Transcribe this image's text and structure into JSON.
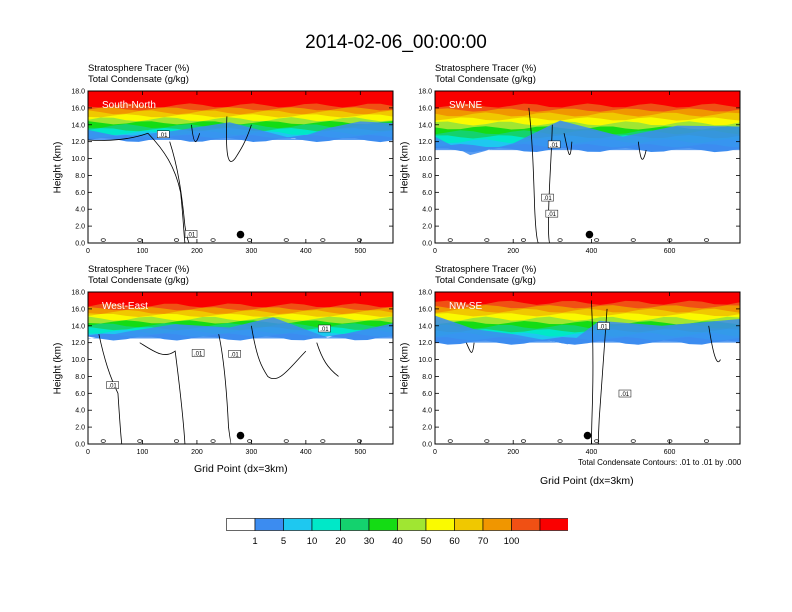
{
  "title": "2014-02-06_00:00:00",
  "panel_header": {
    "line1": "Stratosphere Tracer   (%)",
    "line2": "Total Condensate   (g/kg)"
  },
  "ylabel": "Height (km)",
  "xlabel": "Grid Point (dx=3km)",
  "contour_note": "Total Condensate Contours: .01 to .01 by .000",
  "colors": {
    "white": "#ffffff",
    "blue": "#3c8cf0",
    "sky": "#1ec8f0",
    "cyan": "#00e8c8",
    "teal": "#14d26e",
    "green": "#14dc14",
    "lime": "#a0e632",
    "yellow": "#fafa00",
    "gold": "#f0c800",
    "orange": "#f09600",
    "redorange": "#f05014",
    "red": "#fa0000"
  },
  "colorbar": {
    "levels": [
      "1",
      "5",
      "10",
      "20",
      "30",
      "40",
      "50",
      "60",
      "70",
      "100"
    ],
    "colors": [
      "#ffffff",
      "#3c8cf0",
      "#1ec8f0",
      "#00e8c8",
      "#14d26e",
      "#14dc14",
      "#a0e632",
      "#fafa00",
      "#f0c800",
      "#f09600",
      "#f05014",
      "#fa0000"
    ]
  },
  "chart_data": [
    {
      "type": "heatmap",
      "panel_label": "South-North",
      "xlim": [
        0,
        560
      ],
      "ylim": [
        0,
        18
      ],
      "xticks": [
        "0",
        "100",
        "200",
        "300",
        "400",
        "500"
      ],
      "yticks": [
        "0.0",
        "2.0",
        "4.0",
        "6.0",
        "8.0",
        "10.0",
        "12.0",
        "14.0",
        "16.0",
        "18.0"
      ],
      "contour_labels": [
        ".01",
        ".01"
      ],
      "marker": {
        "x": 280,
        "y": 1.0
      }
    },
    {
      "type": "heatmap",
      "panel_label": "SW-NE",
      "xlim": [
        0,
        780
      ],
      "ylim": [
        0,
        18
      ],
      "xticks": [
        "0",
        "200",
        "400",
        "600"
      ],
      "yticks": [
        "0.0",
        "2.0",
        "4.0",
        "6.0",
        "8.0",
        "10.0",
        "12.0",
        "14.0",
        "16.0",
        "18.0"
      ],
      "contour_labels": [
        ".01",
        ".01",
        ".01"
      ],
      "marker": {
        "x": 395,
        "y": 1.0
      }
    },
    {
      "type": "heatmap",
      "panel_label": "West-East",
      "xlim": [
        0,
        560
      ],
      "ylim": [
        0,
        18
      ],
      "xticks": [
        "0",
        "100",
        "200",
        "300",
        "400",
        "500"
      ],
      "yticks": [
        "0.0",
        "2.0",
        "4.0",
        "6.0",
        "8.0",
        "10.0",
        "12.0",
        "14.0",
        "16.0",
        "18.0"
      ],
      "contour_labels": [
        ".01",
        ".01",
        ".01",
        ".01"
      ],
      "marker": {
        "x": 280,
        "y": 1.0
      }
    },
    {
      "type": "heatmap",
      "panel_label": "NW-SE",
      "xlim": [
        0,
        780
      ],
      "ylim": [
        0,
        18
      ],
      "xticks": [
        "0",
        "200",
        "400",
        "600"
      ],
      "yticks": [
        "0.0",
        "2.0",
        "4.0",
        "6.0",
        "8.0",
        "10.0",
        "12.0",
        "14.0",
        "16.0",
        "18.0"
      ],
      "contour_labels": [
        ".01",
        ".01"
      ],
      "marker": {
        "x": 390,
        "y": 1.0
      }
    }
  ]
}
